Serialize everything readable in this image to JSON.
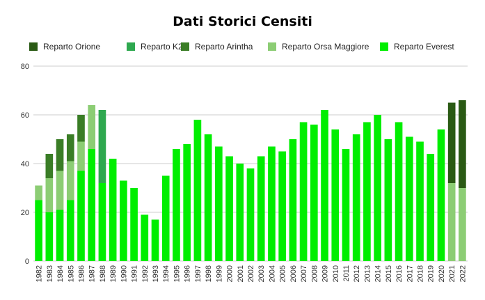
{
  "chart_data": {
    "type": "bar",
    "stacked": true,
    "title": "Dati Storici Censiti",
    "xlabel": "",
    "ylabel": "",
    "ylim": [
      0,
      80
    ],
    "yticks": [
      0,
      20,
      40,
      60,
      80
    ],
    "grid": true,
    "legend_position": "top",
    "categories": [
      "1982",
      "1983",
      "1984",
      "1985",
      "1986",
      "1987",
      "1988",
      "1989",
      "1990",
      "1991",
      "1992",
      "1993",
      "1994",
      "1995",
      "1996",
      "1997",
      "1998",
      "1999",
      "2000",
      "2001",
      "2002",
      "2003",
      "2004",
      "2005",
      "2006",
      "2007",
      "2008",
      "2009",
      "2010",
      "2011",
      "2012",
      "2013",
      "2014",
      "2015",
      "2016",
      "2017",
      "2018",
      "2019",
      "2020",
      "2021",
      "2022"
    ],
    "series": [
      {
        "name": "Reparto Everest",
        "color": "#00ee00",
        "values": [
          25,
          20,
          21,
          25,
          37,
          46,
          32,
          42,
          33,
          30,
          19,
          17,
          35,
          46,
          48,
          58,
          52,
          47,
          43,
          40,
          38,
          43,
          47,
          45,
          50,
          57,
          56,
          62,
          54,
          46,
          52,
          57,
          60,
          50,
          57,
          51,
          49,
          44,
          54,
          0,
          0
        ]
      },
      {
        "name": "Reparto Orsa Maggiore",
        "color": "#8ccd74",
        "values": [
          6,
          14,
          16,
          16,
          12,
          18,
          0,
          0,
          0,
          0,
          0,
          0,
          0,
          0,
          0,
          0,
          0,
          0,
          0,
          0,
          0,
          0,
          0,
          0,
          0,
          0,
          0,
          0,
          0,
          0,
          0,
          0,
          0,
          0,
          0,
          0,
          0,
          0,
          0,
          32,
          30
        ]
      },
      {
        "name": "Reparto Arintha",
        "color": "#3a7d26",
        "values": [
          0,
          10,
          13,
          11,
          11,
          0,
          0,
          0,
          0,
          0,
          0,
          0,
          0,
          0,
          0,
          0,
          0,
          0,
          0,
          0,
          0,
          0,
          0,
          0,
          0,
          0,
          0,
          0,
          0,
          0,
          0,
          0,
          0,
          0,
          0,
          0,
          0,
          0,
          0,
          0,
          0
        ]
      },
      {
        "name": "Reparto K2",
        "color": "#2ea84f",
        "values": [
          0,
          0,
          0,
          0,
          0,
          0,
          30,
          0,
          0,
          0,
          0,
          0,
          0,
          0,
          0,
          0,
          0,
          0,
          0,
          0,
          0,
          0,
          0,
          0,
          0,
          0,
          0,
          0,
          0,
          0,
          0,
          0,
          0,
          0,
          0,
          0,
          0,
          0,
          0,
          0,
          0
        ]
      },
      {
        "name": "Reparto Orione",
        "color": "#2a5a14",
        "values": [
          0,
          0,
          0,
          0,
          0,
          0,
          0,
          0,
          0,
          0,
          0,
          0,
          0,
          0,
          0,
          0,
          0,
          0,
          0,
          0,
          0,
          0,
          0,
          0,
          0,
          0,
          0,
          0,
          0,
          0,
          0,
          0,
          0,
          0,
          0,
          0,
          0,
          0,
          0,
          33,
          36
        ]
      }
    ],
    "legend_order": [
      "Reparto Orione",
      "Reparto K2",
      "Reparto Arintha",
      "Reparto Orsa Maggiore",
      "Reparto Everest"
    ]
  }
}
